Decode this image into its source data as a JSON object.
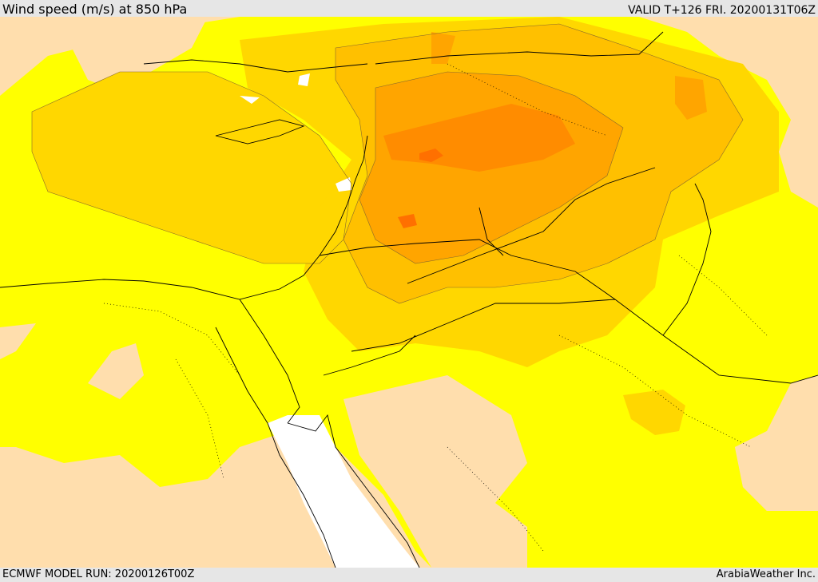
{
  "header": {
    "title": "Wind speed (m/s) at 850 hPa",
    "valid": "VALID T+126 FRI. 20200131T06Z"
  },
  "footer": {
    "model_run": "ECMWF MODEL RUN: 20200126T00Z",
    "credit": "ArabiaWeather Inc."
  },
  "map": {
    "colors": {
      "calm_land": "#ffdead",
      "level_1": "#ffff00",
      "level_2": "#ffd700",
      "level_3": "#ffc000",
      "level_4": "#ffa500",
      "level_5": "#ff8c00",
      "level_6": "#ff7000",
      "water": "#ffffff",
      "border": "#000000"
    }
  }
}
